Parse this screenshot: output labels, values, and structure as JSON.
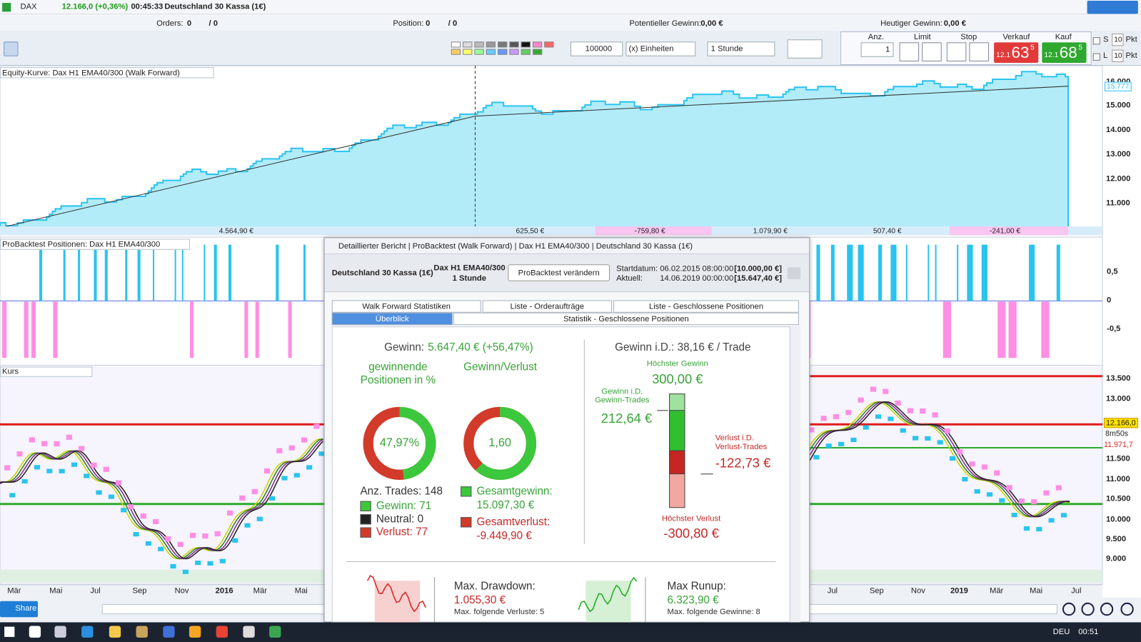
{
  "title_bar": {
    "instrument": "DAX",
    "price": "12.166,0 (+0,36%)",
    "time": "00:45:33",
    "name": "Deutschland 30 Kassa (1€)"
  },
  "status_bar": {
    "orders_label": "Orders:",
    "orders_value": "0",
    "orders_total": "/ 0",
    "position_label": "Position:",
    "position_value": "0",
    "position_total": "/ 0",
    "potential_label": "Potentieller Gewinn:",
    "potential_value": "0,00 €",
    "today_label": "Heutiger Gewinn:",
    "today_value": "0,00 €"
  },
  "toolbar": {
    "quantity": "100000",
    "units": "(x) Einheiten",
    "timeframe": "1 Stunde",
    "anz_label": "Anz.",
    "anz_value": "1",
    "limit_label": "Limit",
    "stop_label": "Stop",
    "sell_label": "Verkauf",
    "buy_label": "Kauf",
    "sell_small": "12.1",
    "sell_big": "63",
    "sell_sup": "5",
    "buy_small": "12.1",
    "buy_big": "68",
    "buy_sup": "5",
    "s_label": "S",
    "s_value": "10",
    "l_label": "L",
    "l_value": "10",
    "pkt": "Pkt"
  },
  "equity_panel": {
    "title": "Equity-Kurve: Dax H1 EMA40/300 (Walk Forward)",
    "yticks": [
      "16.000",
      "15.000",
      "14.000",
      "13.000",
      "12.000",
      "11.000"
    ],
    "last_label": "15.777",
    "segment_labels": [
      "4.564,90 €",
      "625,50 €",
      "-759,80 €",
      "1.079,90 €",
      "507,40 €",
      "-241,00 €"
    ]
  },
  "positions_panel": {
    "title": "ProBacktest Positionen: Dax H1 EMA40/300",
    "yticks": [
      "0,5",
      "0",
      "-0,5"
    ]
  },
  "price_panel": {
    "title": "Kurs",
    "yticks": [
      "13.500",
      "13.000",
      "11.500",
      "11.000",
      "10.500",
      "10.000",
      "9.500",
      "9.000"
    ],
    "last_price": "12.166,0",
    "countdown": "8m50s",
    "low_price": "11.971,7",
    "x_left": [
      "Mär",
      "Mai",
      "Jul",
      "Sep",
      "Nov",
      "2016",
      "Mär",
      "Mai"
    ],
    "x_right": [
      "Jul",
      "Sep",
      "Nov",
      "2019",
      "Mär",
      "Mai",
      "Jul"
    ]
  },
  "report": {
    "window_title": "Detaillierter Bericht | ProBacktest (Walk Forward) | Dax H1 EMA40/300 | Deutschland 30 Kassa (1€)",
    "instrument": "Deutschland 30 Kassa (1€)",
    "strategy": "Dax H1 EMA40/300",
    "timeframe": "1 Stunde",
    "button": "ProBacktest verändern",
    "start_label": "Startdatum:",
    "start_date": "06.02.2015 08:00:00",
    "start_capital": "[10.000,00 €]",
    "current_label": "Aktuell:",
    "current_date": "14.06.2019 00:00:00",
    "current_capital": "[15.647,40 €]",
    "tabs": [
      "Walk Forward Statistiken",
      "Liste - Orderaufträge",
      "Liste - Geschlossene Positionen",
      "Überblick",
      "Statistik - Geschlossene Positionen"
    ],
    "gain_label": "Gewinn:",
    "gain_value": "5.647,40 € (+56,47%)",
    "win_title": "gewinnende Positionen in %",
    "win_pct": {
      "value": 47.97,
      "label": "47,97%"
    },
    "ratio_title": "Gewinn/Verlust",
    "ratio": {
      "value": 1.6,
      "label": "1,60"
    },
    "trades": "Anz. Trades: 148",
    "wins": "Gewinn: 71",
    "neutral": "Neutral: 0",
    "losses": "Verlust: 77",
    "gross_gain_label": "Gesamtgewinn:",
    "gross_gain": "15.097,30 €",
    "gross_loss_label": "Gesamtverlust:",
    "gross_loss": "-9.449,90 €",
    "avg_label": "Gewinn i.D.: 38,16 € / Trade",
    "max_gain_label": "Höchster Gewinn",
    "max_gain": {
      "value": 300,
      "label": "300,00 €"
    },
    "avg_win_label": "Gewinn i.D. Gewinn-Trades",
    "avg_win": {
      "value": 212.64,
      "label": "212,64 €"
    },
    "avg_loss_label": "Verlust i.D. Verlust-Trades",
    "avg_loss": {
      "value": -122.73,
      "label": "-122,73 €"
    },
    "max_loss_label": "Höchster Verlust",
    "max_loss": {
      "value": -300.8,
      "label": "-300,80 €"
    },
    "drawdown_label": "Max. Drawdown:",
    "drawdown": "1.055,30 €",
    "drawdown_note": "Max. folgende Verluste: 5",
    "runup_label": "Max Runup:",
    "runup": "6.323,90 €",
    "runup_note": "Max. folgende Gewinne: 8"
  },
  "bottom_bar": {
    "share": "Share"
  },
  "taskbar": {
    "lang": "DEU",
    "time": "00:51"
  }
}
